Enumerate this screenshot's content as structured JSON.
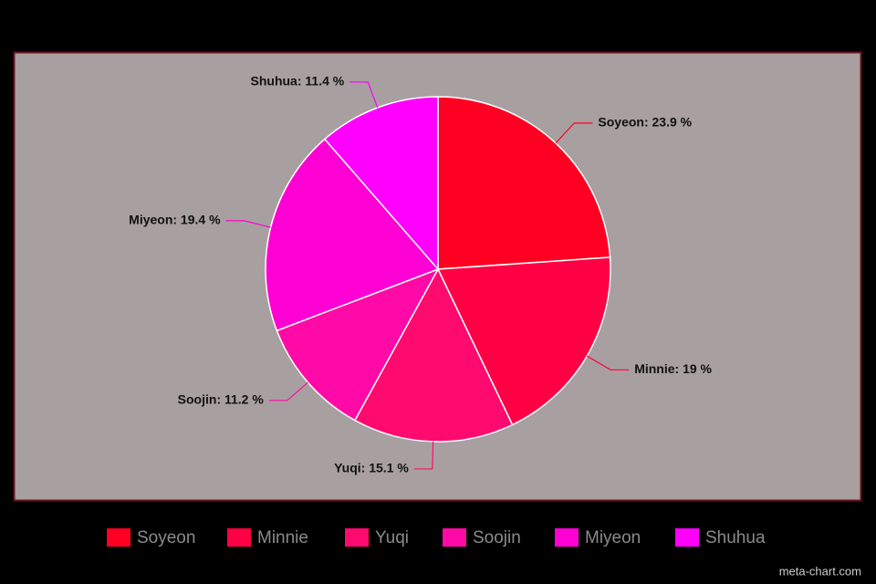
{
  "chart_data": {
    "type": "pie",
    "categories": [
      "Soyeon",
      "Minnie",
      "Yuqi",
      "Soojin",
      "Miyeon",
      "Shuhua"
    ],
    "values": [
      23.9,
      19,
      15.1,
      11.2,
      19.4,
      11.4
    ],
    "value_labels": [
      "Soyeon: 23.9 %",
      "Minnie: 19 %",
      "Yuqi: 15.1 %",
      "Soojin: 11.2 %",
      "Miyeon: 19.4 %",
      "Shuhua: 11.4 %"
    ],
    "colors": [
      "#ff0022",
      "#ff0044",
      "#ff0a6e",
      "#ff0aa6",
      "#ff00d4",
      "#ff00ff"
    ],
    "watermark": "meta-chart.com"
  }
}
